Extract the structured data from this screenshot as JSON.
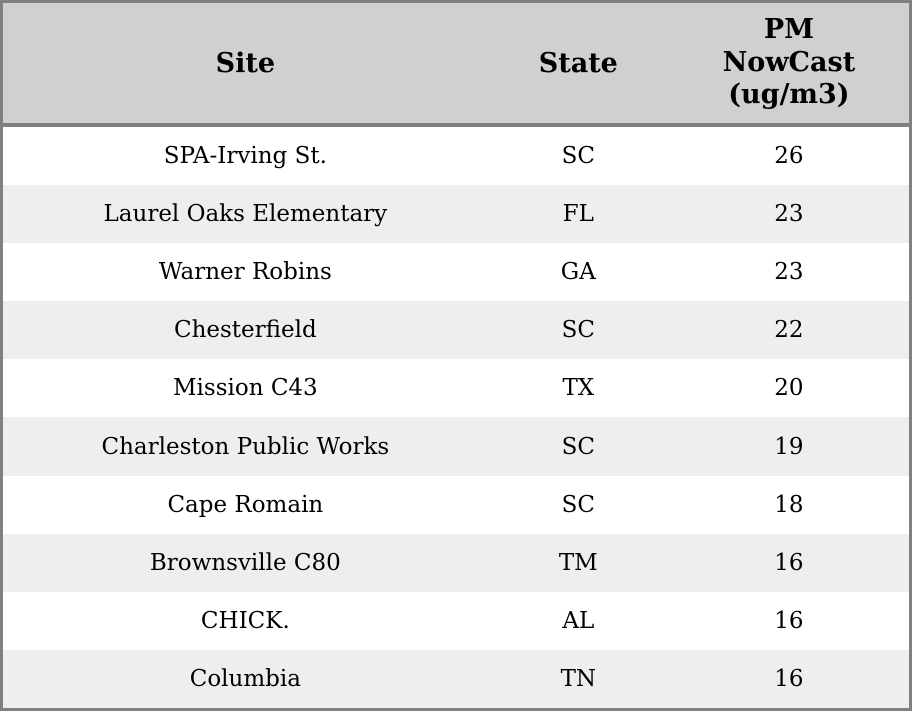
{
  "table": {
    "header": {
      "site": "Site",
      "state": "State",
      "pm": "PM NowCast (ug/m3)"
    },
    "rows": [
      {
        "site": "SPA-Irving St.",
        "state": "SC",
        "value": "26"
      },
      {
        "site": "Laurel Oaks Elementary",
        "state": "FL",
        "value": "23"
      },
      {
        "site": "Warner Robins",
        "state": "GA",
        "value": "23"
      },
      {
        "site": "Chesterfield",
        "state": "SC",
        "value": "22"
      },
      {
        "site": "Mission C43",
        "state": "TX",
        "value": "20"
      },
      {
        "site": "Charleston Public Works",
        "state": "SC",
        "value": "19"
      },
      {
        "site": "Cape Romain",
        "state": "SC",
        "value": "18"
      },
      {
        "site": "Brownsville C80",
        "state": "TM",
        "value": "16"
      },
      {
        "site": "CHICK.",
        "state": "AL",
        "value": "16"
      },
      {
        "site": "Columbia",
        "state": "TN",
        "value": "16"
      }
    ]
  },
  "chart_data": {
    "type": "table",
    "columns": [
      "Site",
      "State",
      "PM NowCast (ug/m3)"
    ],
    "rows": [
      [
        "SPA-Irving St.",
        "SC",
        26
      ],
      [
        "Laurel Oaks Elementary",
        "FL",
        23
      ],
      [
        "Warner Robins",
        "GA",
        23
      ],
      [
        "Chesterfield",
        "SC",
        22
      ],
      [
        "Mission C43",
        "TX",
        20
      ],
      [
        "Charleston Public Works",
        "SC",
        19
      ],
      [
        "Cape Romain",
        "SC",
        18
      ],
      [
        "Brownsville C80",
        "TM",
        16
      ],
      [
        "CHICK.",
        "AL",
        16
      ],
      [
        "Columbia",
        "TN",
        16
      ]
    ],
    "title": "",
    "layout_hints": {
      "striped": true,
      "alternating_row_starts_shaded": true,
      "all_columns_center_aligned": true
    }
  },
  "colors": {
    "outer_border": "#808080",
    "header_background": "#d0d0d0",
    "header_separator": "#808080",
    "stripe_row_background": "#eeeeee",
    "plain_row_background": "#ffffff",
    "text": "#000000"
  }
}
